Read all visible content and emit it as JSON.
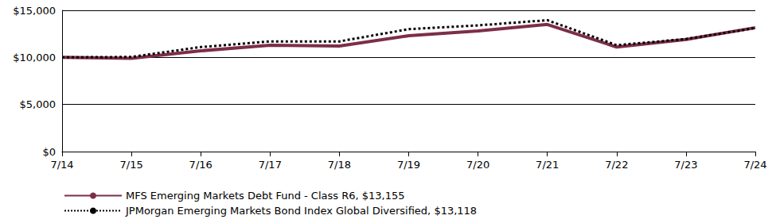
{
  "chart_data": {
    "type": "line",
    "categories": [
      "7/14",
      "7/15",
      "7/16",
      "7/17",
      "7/18",
      "7/19",
      "7/20",
      "7/21",
      "7/22",
      "7/23",
      "7/24"
    ],
    "series": [
      {
        "name": "MFS Emerging Markets Debt Fund - Class R6, $13,155",
        "color": "#7d2e46",
        "line_style": "solid",
        "values": [
          10000,
          9900,
          10700,
          11300,
          11200,
          12300,
          12800,
          13500,
          11100,
          11900,
          13155
        ]
      },
      {
        "name": "JPMorgan Emerging Markets Bond Index Global Diversified, $13,118",
        "color": "#000000",
        "line_style": "dotted",
        "values": [
          10000,
          10050,
          11100,
          11700,
          11700,
          13000,
          13400,
          13950,
          11300,
          11950,
          13118
        ]
      }
    ],
    "ylim": [
      0,
      15000
    ],
    "yticks": [
      {
        "value": 0,
        "label": "$0"
      },
      {
        "value": 5000,
        "label": "$5,000"
      },
      {
        "value": 10000,
        "label": "$10,000"
      },
      {
        "value": 15000,
        "label": "$15,000"
      }
    ],
    "grid": true,
    "legend": "bottom"
  }
}
